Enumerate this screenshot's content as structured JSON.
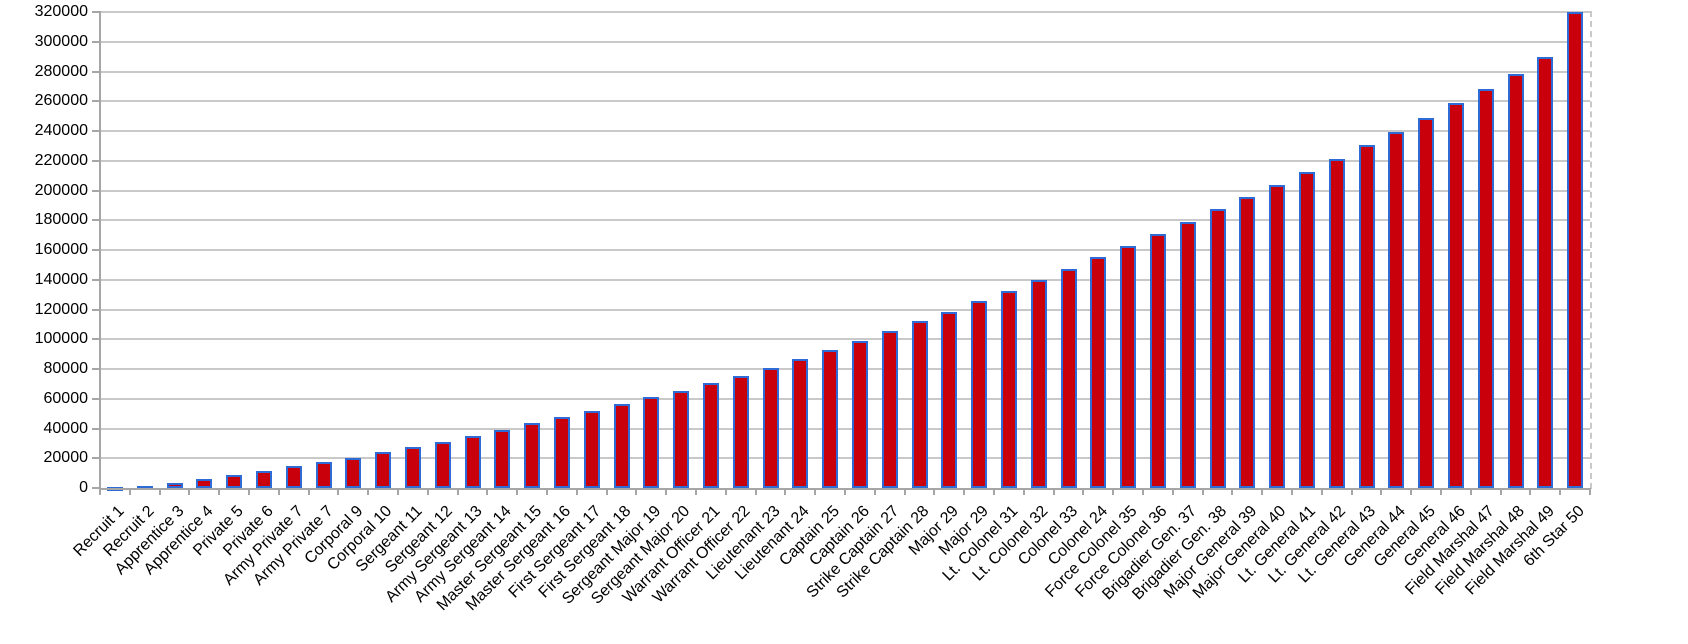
{
  "chart_data": {
    "type": "bar",
    "title": "",
    "xlabel": "",
    "ylabel": "",
    "legend": "none",
    "grid": true,
    "ylim": [
      0,
      320000
    ],
    "ytick_step": 20000,
    "y_tick_labels": [
      "0",
      "20000",
      "40000",
      "60000",
      "80000",
      "100000",
      "120000",
      "140000",
      "160000",
      "180000",
      "200000",
      "220000",
      "240000",
      "260000",
      "280000",
      "300000",
      "320000"
    ],
    "bar_fill": "#c9000b",
    "bar_border": "#2f6bd6",
    "gridline_color": "#c9c9c9",
    "axis_color": "#a6a6a6",
    "categories": [
      "Recruit 1",
      "Recruit 2",
      "Apprentice 3",
      "Apprentice 4",
      "Private 5",
      "Private 6",
      "Army Private 7",
      "Army Private 7",
      "Corporal 9",
      "Corporal 10",
      "Sergeant 11",
      "Sergeant 12",
      "Army Sergeant 13",
      "Army Sergeant 14",
      "Master Sergeant 15",
      "Master Sergeant 16",
      "First Sergeant 17",
      "First Sergeant 18",
      "Sergeant Major 19",
      "Sergeant Major 20",
      "Warrant Officer 21",
      "Warrant Officer 22",
      "Lieutenant 23",
      "Lieutenant 24",
      "Captain 25",
      "Captain 26",
      "Strike Captain 27",
      "Strike Captain 28",
      "Major 29",
      "Major 29",
      "Lt. Colonel 31",
      "Lt. Colonel 32",
      "Colonel 33",
      "Colonel 24",
      "Force Colonel 35",
      "Force Colonel 36",
      "Brigadier Gen. 37",
      "Brigadier Gen. 38",
      "Major General 39",
      "Major General 40",
      "Lt. General 41",
      "Lt. General 42",
      "Lt. General 43",
      "General 44",
      "General 45",
      "General 46",
      "Field Marshal 47",
      "Field Marshal 48",
      "Field Marshal 49",
      "6th Star 50"
    ],
    "values": [
      500,
      1500,
      3500,
      6000,
      8500,
      11500,
      14500,
      17500,
      20500,
      24000,
      27500,
      31000,
      35000,
      39000,
      43500,
      48000,
      52000,
      56500,
      61000,
      65500,
      70500,
      75500,
      81000,
      87000,
      93000,
      99000,
      105500,
      112000,
      118500,
      125500,
      132500,
      140000,
      147500,
      155000,
      163000,
      171000,
      179000,
      187500,
      195500,
      204000,
      212500,
      221500,
      230500,
      239500,
      249000,
      258500,
      268500,
      278500,
      289500,
      320000
    ]
  }
}
